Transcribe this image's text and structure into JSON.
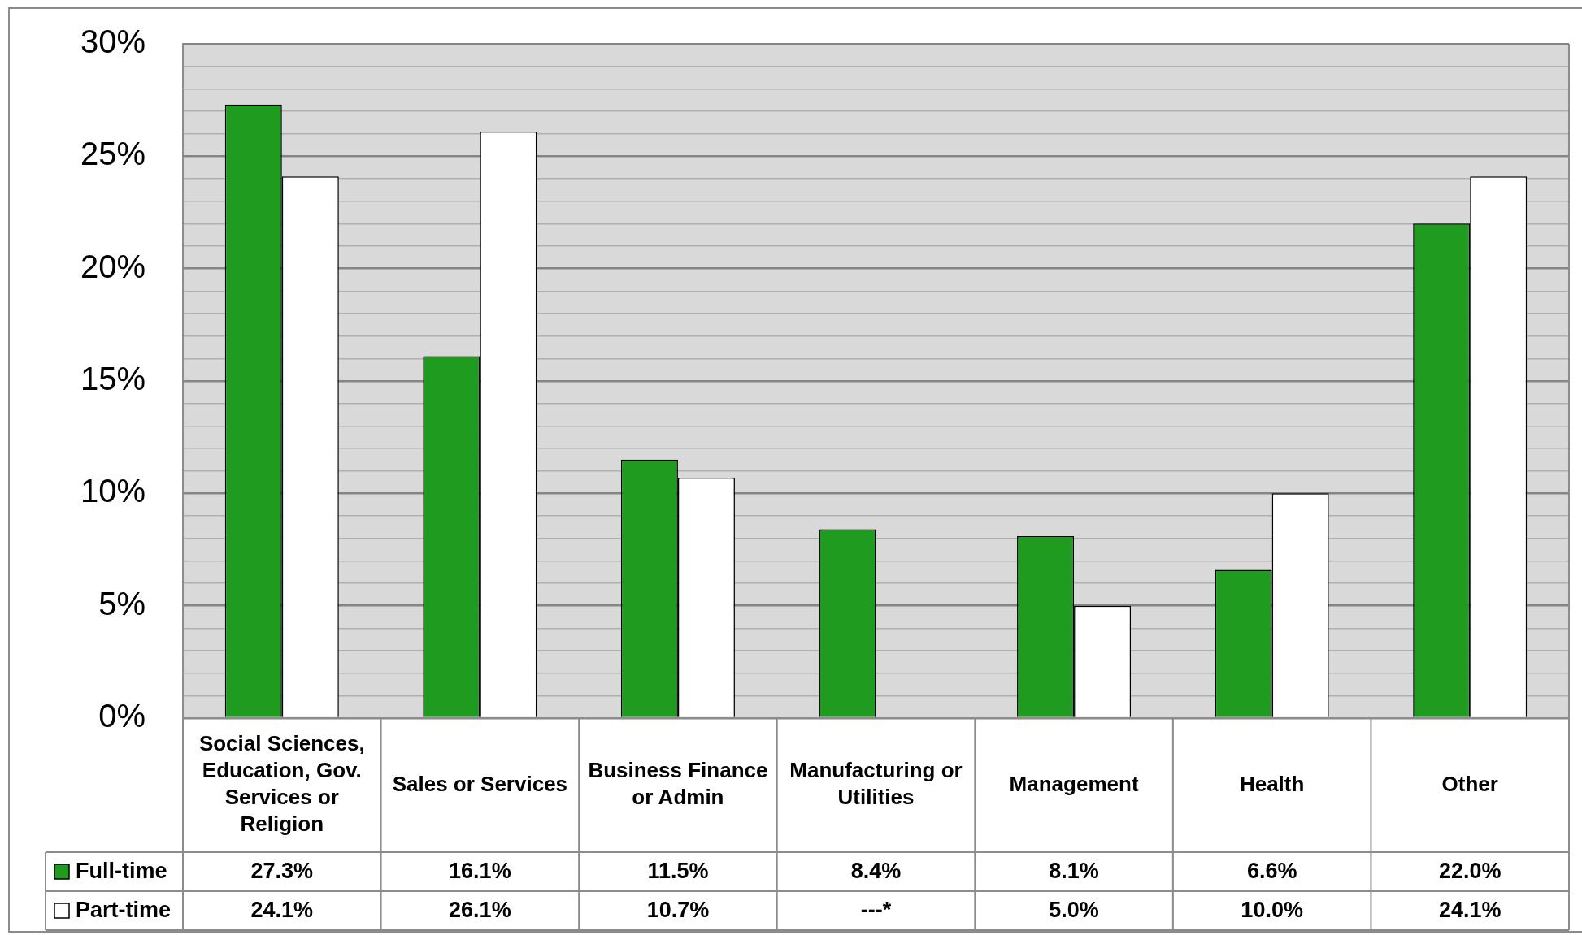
{
  "chart_data": {
    "type": "bar",
    "categories": [
      "Social Sciences, Education, Gov. Services or Religion",
      "Sales or Services",
      "Business Finance or Admin",
      "Manufacturing or Utilities",
      "Management",
      "Health",
      "Other"
    ],
    "series": [
      {
        "name": "Full-time",
        "color": "#1f9b1f",
        "values": [
          27.3,
          16.1,
          11.5,
          8.4,
          8.1,
          6.6,
          22.0
        ],
        "value_labels": [
          "27.3%",
          "16.1%",
          "11.5%",
          "8.4%",
          "8.1%",
          "6.6%",
          "22.0%"
        ]
      },
      {
        "name": "Part-time",
        "color": "#ffffff",
        "values": [
          24.1,
          26.1,
          10.7,
          null,
          5.0,
          10.0,
          24.1
        ],
        "value_labels": [
          "24.1%",
          "26.1%",
          "10.7%",
          "---*",
          "5.0%",
          "10.0%",
          "24.1%"
        ]
      }
    ],
    "ylim": [
      0,
      30
    ],
    "yticks": [
      {
        "value": 0,
        "label": "0%"
      },
      {
        "value": 1,
        "label": null
      },
      {
        "value": 2,
        "label": null
      },
      {
        "value": 3,
        "label": null
      },
      {
        "value": 4,
        "label": null
      },
      {
        "value": 5,
        "label": "5%"
      },
      {
        "value": 6,
        "label": null
      },
      {
        "value": 7,
        "label": null
      },
      {
        "value": 8,
        "label": null
      },
      {
        "value": 9,
        "label": null
      },
      {
        "value": 10,
        "label": "10%"
      },
      {
        "value": 11,
        "label": null
      },
      {
        "value": 12,
        "label": null
      },
      {
        "value": 13,
        "label": null
      },
      {
        "value": 14,
        "label": null
      },
      {
        "value": 15,
        "label": "15%"
      },
      {
        "value": 16,
        "label": null
      },
      {
        "value": 17,
        "label": null
      },
      {
        "value": 18,
        "label": null
      },
      {
        "value": 19,
        "label": null
      },
      {
        "value": 20,
        "label": "20%"
      },
      {
        "value": 21,
        "label": null
      },
      {
        "value": 22,
        "label": null
      },
      {
        "value": 23,
        "label": null
      },
      {
        "value": 24,
        "label": null
      },
      {
        "value": 25,
        "label": "25%"
      },
      {
        "value": 26,
        "label": null
      },
      {
        "value": 27,
        "label": null
      },
      {
        "value": 28,
        "label": null
      },
      {
        "value": 29,
        "label": null
      },
      {
        "value": 30,
        "label": "30%"
      }
    ],
    "grid": "y",
    "legend": "bottom"
  }
}
